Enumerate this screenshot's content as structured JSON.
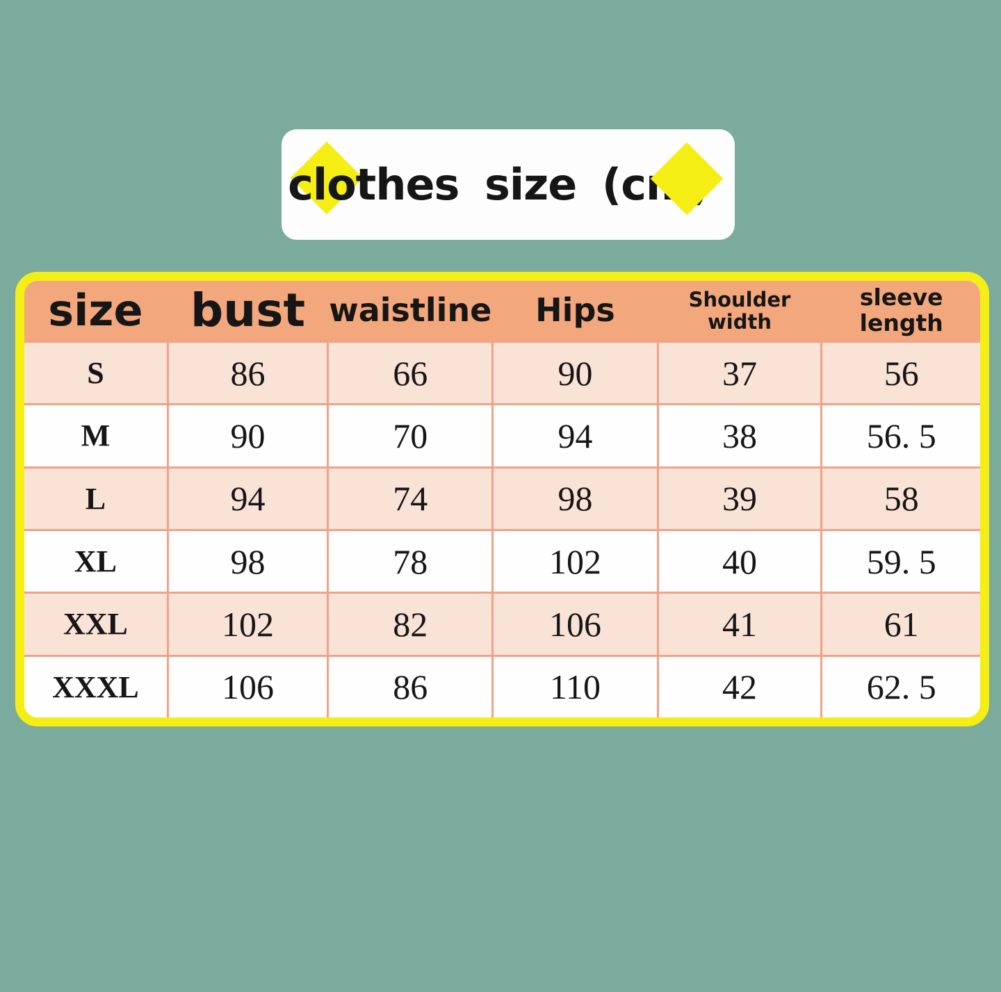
{
  "banner": {
    "title": "clothes size (cm)"
  },
  "table": {
    "headers": [
      "size",
      "bust",
      "waistline",
      "Hips",
      "Shoulder\nwidth",
      "sleeve\nlength"
    ],
    "rows": [
      [
        "S",
        "86",
        "66",
        "90",
        "37",
        "56"
      ],
      [
        "M",
        "90",
        "70",
        "94",
        "38",
        "56. 5"
      ],
      [
        "L",
        "94",
        "74",
        "98",
        "39",
        "58"
      ],
      [
        "XL",
        "98",
        "78",
        "102",
        "40",
        "59. 5"
      ],
      [
        "XXL",
        "102",
        "82",
        "106",
        "41",
        "61"
      ],
      [
        "XXXL",
        "106",
        "86",
        "110",
        "42",
        "62. 5"
      ]
    ]
  },
  "colors": {
    "background_green": "#7aab9d",
    "accent_yellow": "#f5ee14",
    "header_orange": "#f2a77c",
    "row_pink": "#f9e2d6",
    "row_white": "#fffefe",
    "grid_line": "#f0a288",
    "text": "#161616",
    "banner_white": "#fdfdfd"
  },
  "chart_data": {
    "type": "table",
    "title": "clothes size (cm)",
    "unit": "cm",
    "columns": [
      "size",
      "bust",
      "waistline",
      "Hips",
      "Shoulder width",
      "sleeve length"
    ],
    "rows": [
      {
        "size": "S",
        "bust": 86,
        "waistline": 66,
        "hips": 90,
        "shoulder_width": 37,
        "sleeve_length": 56
      },
      {
        "size": "M",
        "bust": 90,
        "waistline": 70,
        "hips": 94,
        "shoulder_width": 38,
        "sleeve_length": 56.5
      },
      {
        "size": "L",
        "bust": 94,
        "waistline": 74,
        "hips": 98,
        "shoulder_width": 39,
        "sleeve_length": 58
      },
      {
        "size": "XL",
        "bust": 98,
        "waistline": 78,
        "hips": 102,
        "shoulder_width": 40,
        "sleeve_length": 59.5
      },
      {
        "size": "XXL",
        "bust": 102,
        "waistline": 82,
        "hips": 106,
        "shoulder_width": 41,
        "sleeve_length": 61
      },
      {
        "size": "XXXL",
        "bust": 106,
        "waistline": 86,
        "hips": 110,
        "shoulder_width": 42,
        "sleeve_length": 62.5
      }
    ]
  }
}
